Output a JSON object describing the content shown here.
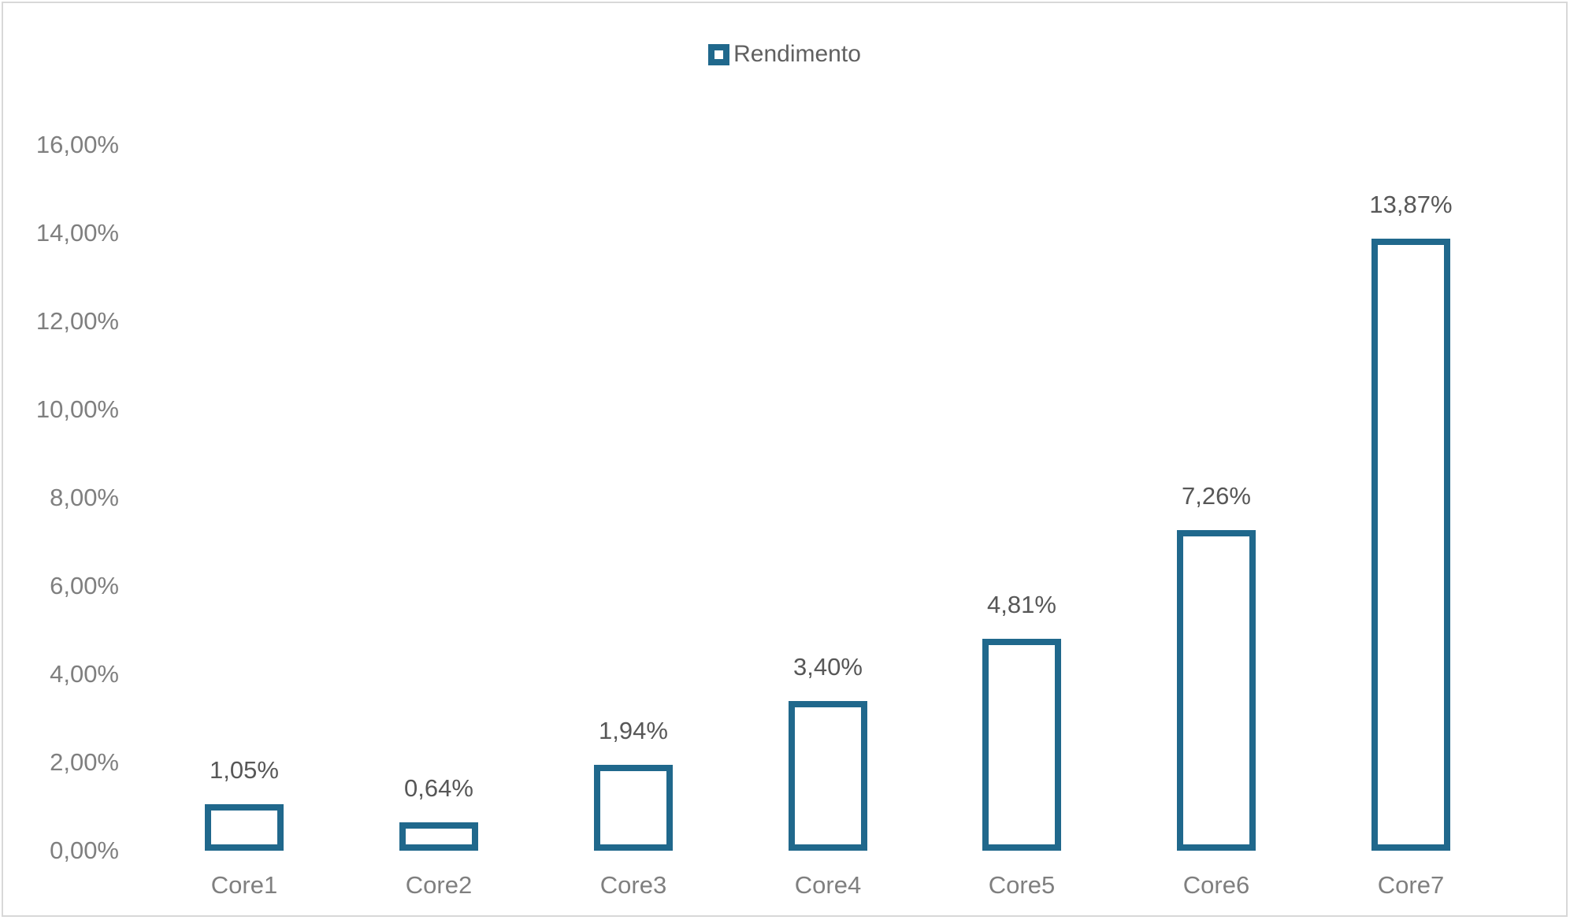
{
  "chart_data": {
    "type": "bar",
    "title": "",
    "legend": {
      "label": "Rendimento",
      "position": "top-center",
      "marker": "hollow-square"
    },
    "categories": [
      "Core1",
      "Core2",
      "Core3",
      "Core4",
      "Core5",
      "Core6",
      "Core7"
    ],
    "series": [
      {
        "name": "Rendimento",
        "values": [
          1.05,
          0.64,
          1.94,
          3.4,
          4.81,
          7.26,
          13.87
        ],
        "value_labels": [
          "1,05%",
          "0,64%",
          "1,94%",
          "3,40%",
          "4,81%",
          "7,26%",
          "13,87%"
        ]
      }
    ],
    "xlabel": "",
    "ylabel": "",
    "ylim": [
      0,
      16
    ],
    "y_tick_labels": [
      "0,00%",
      "2,00%",
      "4,00%",
      "6,00%",
      "8,00%",
      "10,00%",
      "12,00%",
      "14,00%",
      "16,00%"
    ],
    "grid": false,
    "bar_style": "outlined-white-fill",
    "colors": {
      "bar_border": "#20688C",
      "bar_fill": "#FFFFFF",
      "axis_label": "#7F7F7F",
      "data_label": "#575757",
      "legend_text": "#606060",
      "frame_border": "#D8D8D8"
    }
  }
}
